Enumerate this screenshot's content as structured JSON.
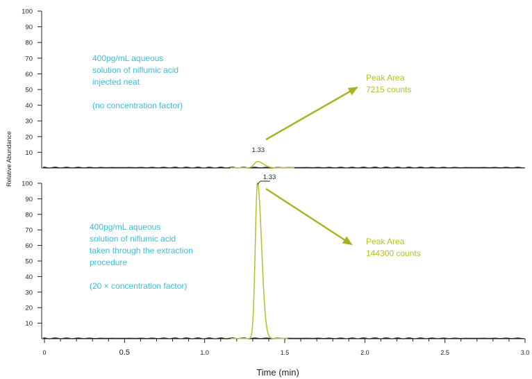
{
  "chart_data": [
    {
      "type": "line",
      "panel": "top",
      "ylim": [
        0,
        100
      ],
      "xlim": [
        0,
        3.0
      ],
      "yticks": [
        "10",
        "20",
        "30",
        "40",
        "50",
        "60",
        "70",
        "80",
        "90",
        "100"
      ],
      "peak": {
        "rt": 1.33,
        "rt_label": "1.33",
        "height": 4,
        "width": 0.02
      },
      "series": [
        {
          "values_note": "",
          "x": [
            0.0,
            1.16,
            1.3,
            1.33,
            1.36,
            1.56,
            3.0
          ],
          "y": [
            0,
            0,
            0.2,
            4,
            0.2,
            0,
            0
          ]
        }
      ],
      "annotation": {
        "lines": [
          "400pg/mL aqueous",
          "solution of niflumic acid",
          "injected neat",
          "",
          "(no concentration factor)"
        ]
      },
      "callout": {
        "lines": [
          "Peak Area",
          "7215 counts"
        ]
      }
    },
    {
      "type": "line",
      "panel": "bottom",
      "ylim": [
        0,
        100
      ],
      "xlim": [
        0,
        3.0
      ],
      "yticks": [
        "10",
        "20",
        "30",
        "40",
        "50",
        "60",
        "70",
        "80",
        "90",
        "100"
      ],
      "peak": {
        "rt": 1.33,
        "rt_label": "1.33",
        "height": 100,
        "width": 0.014
      },
      "annotation": {
        "lines": [
          "400pg/mL aqueous",
          "solution of niflumic acid",
          "taken through the extraction",
          "procedure",
          "",
          "(20 × concentration factor)"
        ]
      },
      "callout": {
        "lines": [
          "Peak Area",
          "144300 counts"
        ]
      }
    }
  ],
  "xaxis": {
    "title": "Time (min)",
    "ticks": [
      {
        "value": 0,
        "label": "0"
      },
      {
        "value": 0.5,
        "label": "0.5"
      },
      {
        "value": 1.0,
        "label": "1.0"
      },
      {
        "value": 1.5,
        "label": "1.5"
      },
      {
        "value": 2.0,
        "label": "2.0"
      },
      {
        "value": 2.5,
        "label": "2.5"
      },
      {
        "value": 3.0,
        "label": "3.0"
      }
    ]
  },
  "yaxis": {
    "title": "Relative Abundance"
  },
  "colors": {
    "annotation_blue": "#3fbcd6",
    "annotation_green": "#b5bd2b",
    "trace_green": "#b5bd2b",
    "axis": "#231f20"
  }
}
